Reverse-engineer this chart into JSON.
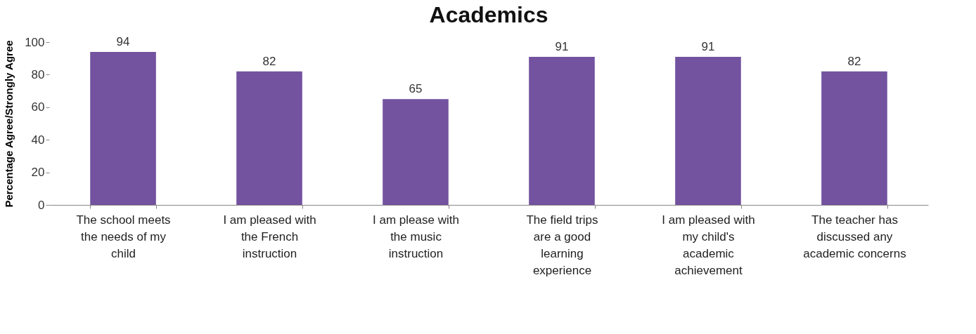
{
  "chart_data": {
    "type": "bar",
    "title": "Academics",
    "ylabel": "Percentage Agree/Strongly Agree",
    "categories": [
      "The school meets the needs of my child",
      "I am pleased with the French instruction",
      "I am please with the music instruction",
      "The field trips are a good learning experience",
      "I am pleased with my child's academic achievement",
      "The teacher has discussed any academic concerns"
    ],
    "values": [
      94,
      82,
      65,
      91,
      91,
      82
    ],
    "color": "#7352a0",
    "ylim": [
      0,
      100
    ],
    "yticks": [
      0,
      20,
      40,
      60,
      80,
      100
    ],
    "grid": false,
    "data_labels": true
  }
}
